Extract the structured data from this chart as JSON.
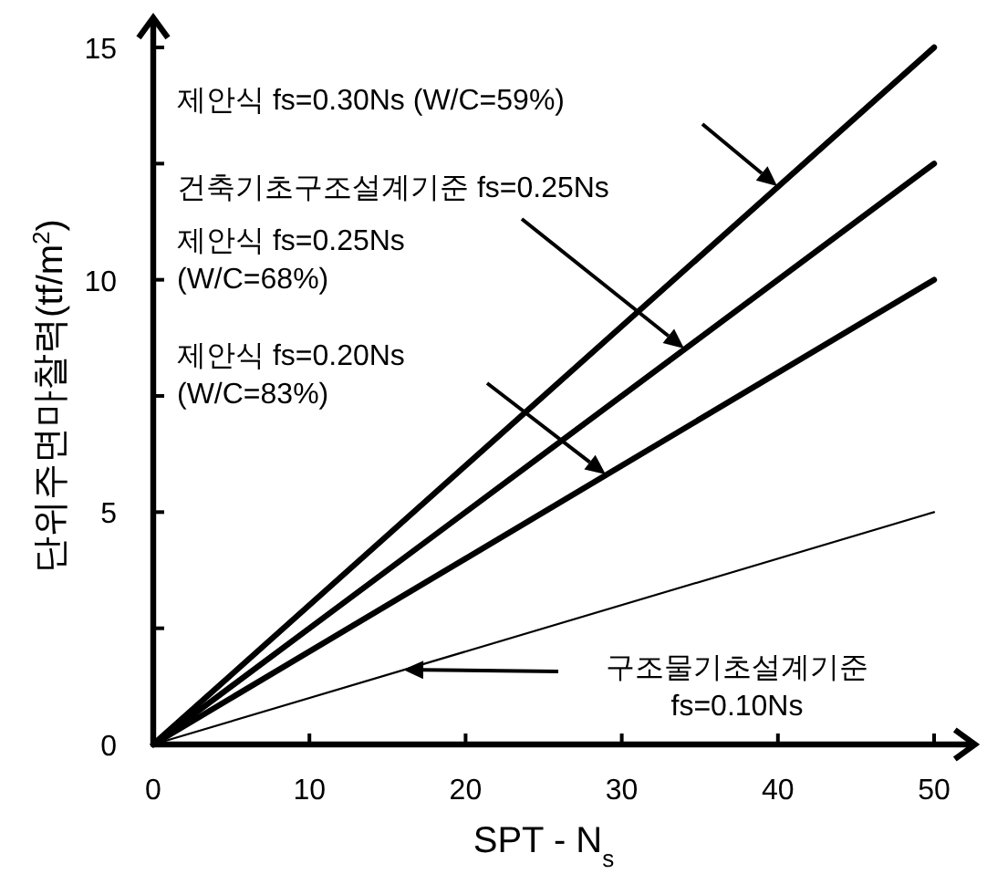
{
  "chart_data": {
    "type": "line",
    "xlabel": "SPT - N$_{s}$",
    "ylabel": "단위주면마찰력(tf/m$^{2}$)",
    "xlim": [
      0,
      52.5
    ],
    "ylim": [
      0,
      15.6
    ],
    "xticks": [
      0,
      10,
      20,
      30,
      40,
      50
    ],
    "yticks": [
      0,
      {
        "value": 2.5,
        "label": null
      },
      5,
      {
        "value": 7.5,
        "label": null
      },
      10,
      {
        "value": 12.5,
        "label": null
      },
      15
    ],
    "grid": false,
    "marker": "none",
    "line_style": "solid",
    "x": [
      0,
      50
    ],
    "series": [
      {
        "color": "#000000",
        "values": [
          0,
          15
        ]
      },
      {
        "color": "#000000",
        "values": [
          0,
          12.5
        ]
      },
      {
        "color": "#000000",
        "values": [
          0,
          10
        ]
      },
      {
        "color": "#000000",
        "values": [
          0,
          5
        ]
      }
    ],
    "annotations": [
      "제안식  fs=0.30Ns (W/C=59%)",
      "건축기초구조설계기준 fs=0.25Ns",
      "제안식  fs=0.25Ns\n(W/C=68%)",
      "제안식  fs=0.20Ns\n(W/C=83%)",
      "구조물기초설계기준\nfs=0.10Ns"
    ]
  }
}
